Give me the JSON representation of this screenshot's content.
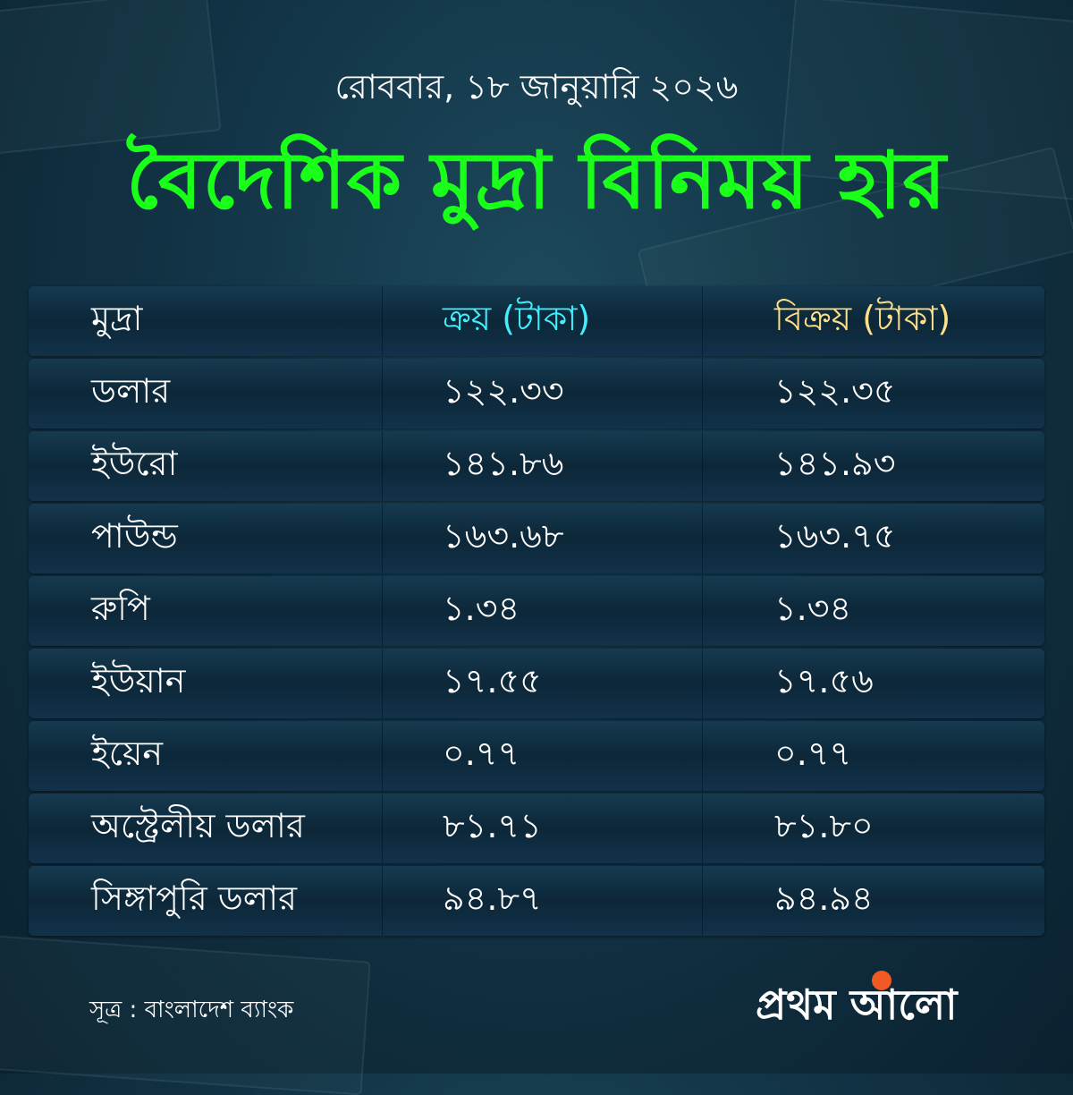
{
  "header": {
    "date": "রোববার, ১৮ জানুয়ারি ২০২৬",
    "title": "বৈদেশিক মুদ্রা বিনিময় হার"
  },
  "table": {
    "columns": [
      "মুদ্রা",
      "ক্রয় (টাকা)",
      "বিক্রয় (টাকা)"
    ],
    "rows": [
      [
        "ডলার",
        "১২২.৩৩",
        "১২২.৩৫"
      ],
      [
        "ইউরো",
        "১৪১.৮৬",
        "১৪১.৯৩"
      ],
      [
        "পাউন্ড",
        "১৬৩.৬৮",
        "১৬৩.৭৫"
      ],
      [
        "রুপি",
        "১.৩৪",
        "১.৩৪"
      ],
      [
        "ইউয়ান",
        "১৭.৫৫",
        "১৭.৫৬"
      ],
      [
        "ইয়েন",
        "০.৭৭",
        "০.৭৭"
      ],
      [
        "অস্ট্রেলীয় ডলার",
        "৮১.৭১",
        "৮১.৮০"
      ],
      [
        "সিঙ্গাপুরি ডলার",
        "৯৪.৮৭",
        "৯৪.৯৪"
      ]
    ]
  },
  "colors": {
    "title": "#1aff1a",
    "buy_header": "#3ff0ff",
    "sell_header": "#ffe08a",
    "background": "#123446"
  },
  "footer": {
    "source": "সূত্র : বাংলাদেশ ব্যাংক",
    "logo": "প্রথম আলো"
  }
}
